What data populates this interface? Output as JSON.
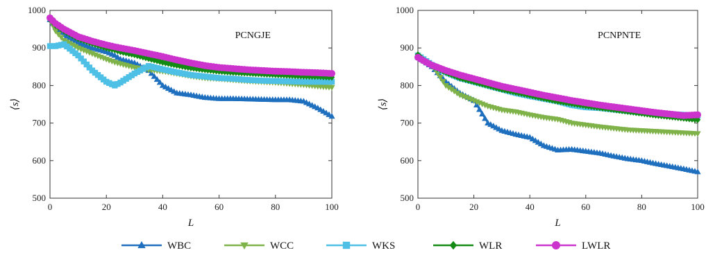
{
  "chart_data": [
    {
      "type": "line",
      "title": "PCNGJE",
      "xlabel": "L",
      "ylabel": "⟨s⟩",
      "xlim": [
        0,
        100
      ],
      "ylim": [
        500,
        1000
      ],
      "xticks": [
        "0",
        "20",
        "40",
        "60",
        "80",
        "100"
      ],
      "yticks": [
        "500",
        "600",
        "700",
        "800",
        "900",
        "1000"
      ],
      "grid": false,
      "x": [
        0,
        2,
        5,
        10,
        15,
        20,
        23,
        25,
        30,
        35,
        40,
        45,
        50,
        55,
        60,
        65,
        70,
        75,
        80,
        85,
        90,
        95,
        100
      ],
      "series": [
        {
          "name": "WBC",
          "color": "#1f6fbf",
          "marker": "triangle-up",
          "values": [
            975,
            955,
            935,
            915,
            900,
            890,
            880,
            870,
            860,
            840,
            800,
            780,
            775,
            768,
            765,
            765,
            764,
            763,
            762,
            762,
            758,
            740,
            718
          ]
        },
        {
          "name": "WCC",
          "color": "#7fb34a",
          "marker": "triangle-down",
          "values": [
            975,
            945,
            920,
            900,
            885,
            870,
            862,
            858,
            848,
            842,
            838,
            832,
            825,
            820,
            818,
            815,
            812,
            810,
            808,
            805,
            802,
            798,
            795
          ]
        },
        {
          "name": "WKS",
          "color": "#4ec0e6",
          "marker": "square",
          "values": [
            905,
            905,
            910,
            880,
            840,
            810,
            800,
            808,
            832,
            852,
            843,
            835,
            828,
            824,
            820,
            818,
            815,
            813,
            812,
            811,
            810,
            810,
            810
          ]
        },
        {
          "name": "WLR",
          "color": "#138a13",
          "marker": "diamond",
          "values": [
            975,
            960,
            945,
            925,
            912,
            900,
            895,
            890,
            882,
            872,
            862,
            854,
            847,
            842,
            838,
            835,
            833,
            831,
            829,
            827,
            825,
            824,
            822
          ]
        },
        {
          "name": "LWLR",
          "color": "#cc33cc",
          "marker": "circle",
          "values": [
            980,
            965,
            950,
            930,
            918,
            908,
            903,
            900,
            893,
            885,
            877,
            868,
            860,
            853,
            848,
            845,
            842,
            840,
            838,
            837,
            835,
            834,
            832
          ]
        }
      ]
    },
    {
      "type": "line",
      "title": "PCNPNTE",
      "xlabel": "L",
      "ylabel": "⟨s⟩",
      "xlim": [
        0,
        100
      ],
      "ylim": [
        500,
        1000
      ],
      "xticks": [
        "0",
        "20",
        "40",
        "60",
        "80",
        "100"
      ],
      "yticks": [
        "500",
        "600",
        "700",
        "800",
        "900",
        "1000"
      ],
      "grid": false,
      "x": [
        0,
        2,
        5,
        10,
        15,
        20,
        25,
        30,
        35,
        40,
        45,
        50,
        55,
        60,
        65,
        70,
        75,
        80,
        85,
        90,
        95,
        100
      ],
      "series": [
        {
          "name": "WBC",
          "color": "#1f6fbf",
          "marker": "triangle-up",
          "values": [
            875,
            865,
            850,
            810,
            780,
            760,
            700,
            680,
            670,
            662,
            640,
            628,
            630,
            625,
            620,
            612,
            605,
            600,
            592,
            585,
            578,
            570
          ]
        },
        {
          "name": "WCC",
          "color": "#7fb34a",
          "marker": "triangle-down",
          "values": [
            880,
            870,
            855,
            800,
            775,
            760,
            745,
            735,
            730,
            722,
            715,
            710,
            700,
            695,
            690,
            686,
            682,
            680,
            678,
            676,
            674,
            672
          ]
        },
        {
          "name": "WKS",
          "color": "#4ec0e6",
          "marker": "square",
          "values": [
            880,
            870,
            855,
            835,
            820,
            810,
            800,
            790,
            780,
            772,
            765,
            758,
            748,
            742,
            740,
            736,
            732,
            728,
            726,
            724,
            722,
            720
          ]
        },
        {
          "name": "WLR",
          "color": "#138a13",
          "marker": "diamond",
          "values": [
            882,
            868,
            852,
            835,
            820,
            810,
            800,
            790,
            782,
            774,
            766,
            758,
            752,
            746,
            741,
            736,
            731,
            726,
            721,
            717,
            713,
            709
          ]
        },
        {
          "name": "LWLR",
          "color": "#cc33cc",
          "marker": "circle",
          "values": [
            875,
            866,
            854,
            840,
            828,
            818,
            808,
            798,
            790,
            782,
            774,
            767,
            760,
            754,
            748,
            743,
            738,
            733,
            728,
            724,
            720,
            722
          ]
        }
      ]
    }
  ],
  "legend": {
    "placement": "bottom",
    "items": [
      "WBC",
      "WCC",
      "WKS",
      "WLR",
      "LWLR"
    ]
  }
}
